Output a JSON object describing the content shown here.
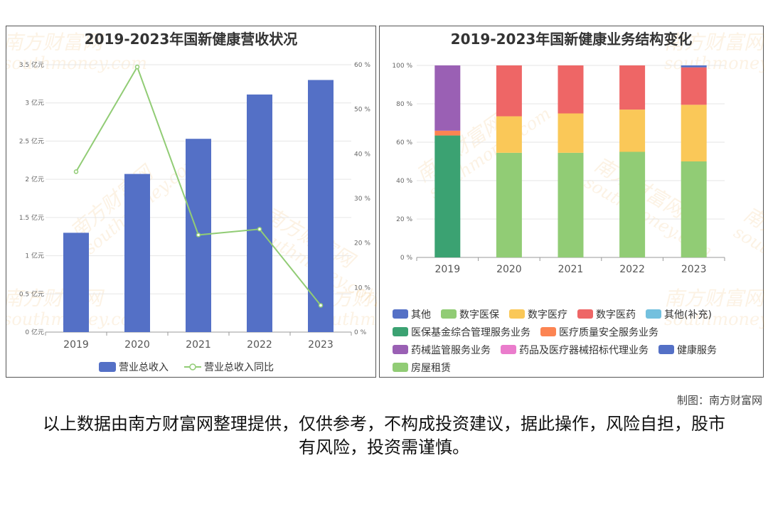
{
  "credit": "制图：南方财富网",
  "disclaimer": "以上数据由南方财富网整理提供，仅供参考，不构成投资建议，据此操作，风险自担，股市有风险，投资需谨慎。",
  "watermark": {
    "cn": "南方财富网",
    "en": "southmoney.com"
  },
  "chart_data": [
    {
      "type": "bar",
      "title": "2019-2023年国新健康营收状况",
      "categories": [
        "2019",
        "2020",
        "2021",
        "2022",
        "2023"
      ],
      "y_ticks": [
        "0 亿元",
        "0.5 亿元",
        "1 亿元",
        "1.5 亿元",
        "2 亿元",
        "2.5 亿元",
        "3 亿元",
        "3.5 亿元"
      ],
      "y2_ticks": [
        "0 %",
        "10 %",
        "20 %",
        "30 %",
        "40 %",
        "50 %",
        "60 %"
      ],
      "ylim": [
        0,
        3.5
      ],
      "y2lim": [
        0,
        60
      ],
      "series": [
        {
          "name": "营业总收入",
          "kind": "bar",
          "color": "#5470c6",
          "values": [
            1.3,
            2.07,
            2.53,
            3.11,
            3.3
          ]
        },
        {
          "name": "营业总收入同比",
          "kind": "line",
          "color": "#91cc75",
          "values": [
            36.0,
            59.5,
            21.8,
            23.1,
            6.0
          ]
        }
      ],
      "legend_position": "bottom"
    },
    {
      "type": "bar",
      "stacked": true,
      "title": "2019-2023年国新健康业务结构变化",
      "categories": [
        "2019",
        "2020",
        "2021",
        "2022",
        "2023"
      ],
      "y_ticks": [
        "0 %",
        "20 %",
        "40 %",
        "60 %",
        "80 %",
        "100 %"
      ],
      "ylim": [
        0,
        100
      ],
      "series": [
        {
          "name": "其他",
          "color": "#5470c6",
          "values": [
            0,
            0,
            0,
            0,
            0
          ]
        },
        {
          "name": "数字医保",
          "color": "#91cc75",
          "values": [
            0,
            54.5,
            54.5,
            55.0,
            50.0
          ]
        },
        {
          "name": "数字医疗",
          "color": "#fac858",
          "values": [
            0,
            19.0,
            20.5,
            22.0,
            29.5
          ]
        },
        {
          "name": "数字医药",
          "color": "#ee6666",
          "values": [
            0,
            26.5,
            25.0,
            23.0,
            19.5
          ]
        },
        {
          "name": "其他(补充)",
          "color": "#73c0de",
          "values": [
            0,
            0,
            0,
            0,
            0
          ]
        },
        {
          "name": "医保基金综合管理服务业务",
          "color": "#3ba272",
          "values": [
            63.5,
            0,
            0,
            0,
            0
          ]
        },
        {
          "name": "医疗质量安全服务业务",
          "color": "#fc8452",
          "values": [
            2.5,
            0,
            0,
            0,
            0
          ]
        },
        {
          "name": "药械监管服务业务",
          "color": "#9a60b4",
          "values": [
            34.0,
            0,
            0,
            0,
            0
          ]
        },
        {
          "name": "药品及医疗器械招标代理业务",
          "color": "#ea7ccc",
          "values": [
            0,
            0,
            0,
            0,
            0
          ]
        },
        {
          "name": "健康服务",
          "color": "#5470c6",
          "values": [
            0,
            0,
            0,
            0,
            1.0
          ]
        },
        {
          "name": "房屋租赁",
          "color": "#91cc75",
          "values": [
            0,
            0,
            0,
            0,
            0
          ]
        }
      ],
      "legend_position": "bottom"
    }
  ]
}
